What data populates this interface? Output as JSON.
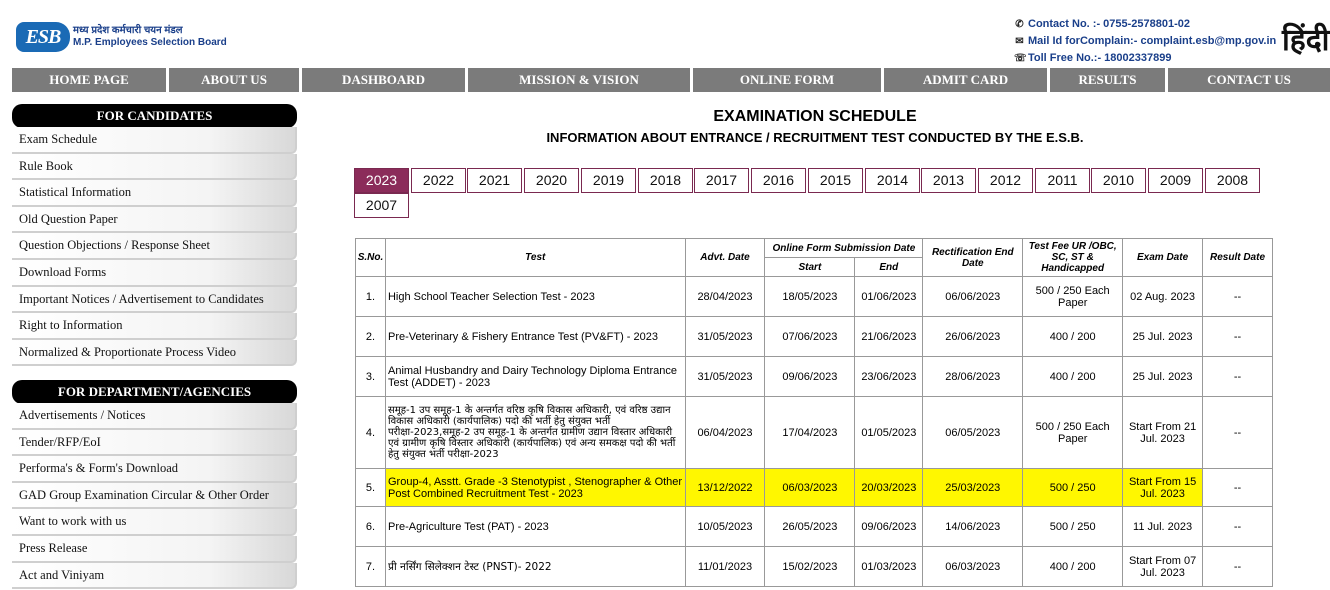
{
  "header": {
    "logo_mark": "ESB",
    "logo_line1": "मध्य प्रदेश कर्मचारी चयन मंडल",
    "logo_line2": "M.P. Employees Selection Board",
    "contact_no": "Contact No. :- 0755-2578801-02",
    "mail_label": "Mail Id forComplain:-",
    "mail_value": "complaint.esb@mp.gov.in",
    "toll_free": "Toll Free No.:- 18002337899",
    "language_toggle": "हिंदी"
  },
  "nav": [
    "HOME PAGE",
    "ABOUT US",
    "DASHBOARD",
    "MISSION & VISION",
    "ONLINE FORM",
    "ADMIT CARD",
    "RESULTS",
    "CONTACT US"
  ],
  "sidebar": {
    "candidates_heading": "FOR CANDIDATES",
    "candidates_items": [
      "Exam Schedule",
      "Rule Book",
      "Statistical Information",
      "Old Question Paper",
      "Question Objections / Response Sheet",
      "Download Forms",
      "Important Notices / Advertisement to Candidates",
      "Right to Information",
      "Normalized & Proportionate Process Video"
    ],
    "department_heading": "FOR DEPARTMENT/AGENCIES",
    "department_items": [
      "Advertisements / Notices",
      "Tender/RFP/EoI",
      "Performa's & Form's Download",
      "GAD Group Examination Circular & Other Order",
      "Want to work with us",
      "Press Release",
      "Act and Viniyam"
    ]
  },
  "main": {
    "title": "EXAMINATION SCHEDULE",
    "subtitle": "INFORMATION ABOUT ENTRANCE / RECRUITMENT TEST CONDUCTED BY THE E.S.B.",
    "years": [
      "2023",
      "2022",
      "2021",
      "2020",
      "2019",
      "2018",
      "2017",
      "2016",
      "2015",
      "2014",
      "2013",
      "2012",
      "2011",
      "2010",
      "2009",
      "2008",
      "2007"
    ],
    "active_year": "2023",
    "columns": {
      "sno": "S.No.",
      "test": "Test",
      "advt": "Advt. Date",
      "online_form": "Online Form Submission Date",
      "start": "Start",
      "end": "End",
      "rectification": "Rectification End Date",
      "fee": "Test Fee UR /OBC, SC, ST & Handicapped",
      "exam": "Exam Date",
      "result": "Result Date"
    },
    "rows": [
      {
        "sno": "1.",
        "test": "High School Teacher Selection Test - 2023",
        "advt": "28/04/2023",
        "start": "18/05/2023",
        "end": "01/06/2023",
        "rect": "06/06/2023",
        "fee": "500 / 250 Each Paper",
        "exam": "02 Aug.  2023",
        "result": "--"
      },
      {
        "sno": "2.",
        "test": "Pre-Veterinary & Fishery Entrance Test (PV&FT) - 2023",
        "advt": "31/05/2023",
        "start": "07/06/2023",
        "end": "21/06/2023",
        "rect": "26/06/2023",
        "fee": "400 / 200",
        "exam": "25 Jul. 2023",
        "result": "--"
      },
      {
        "sno": "3.",
        "test": "Animal Husbandry and Dairy Technology Diploma Entrance Test (ADDET) - 2023",
        "advt": "31/05/2023",
        "start": "09/06/2023",
        "end": "23/06/2023",
        "rect": "28/06/2023",
        "fee": "400 / 200",
        "exam": "25 Jul. 2023",
        "result": "--"
      },
      {
        "sno": "4.",
        "test": "समूह-1 उप समूह-1 के अन्तर्गत वरिष्ठ कृषि विकास अधिकारी, एवं वरिष्ठ उद्यान विकास अधिकारी (कार्यपालिक) पदो की भर्ती हेतु संयुक्त भर्ती परीक्षा-2023,समूह-2 उप समूह-1 के अन्तर्गत ग्रामीण उद्यान विस्तार अधिकारी एवं ग्रामीण कृषि विस्तार अधिकारी (कार्यपालिक) एवं अन्य समकक्ष पदो की भर्ती हेतु संयुक्त भर्ती परीक्षा-2023",
        "advt": "06/04/2023",
        "start": "17/04/2023",
        "end": "01/05/2023",
        "rect": "06/05/2023",
        "fee": "500 / 250 Each Paper",
        "exam": "Start From 21 Jul. 2023",
        "result": "--"
      },
      {
        "sno": "5.",
        "test": "Group-4, Asstt. Grade -3 Stenotypist , Stenographer & Other Post Combined Recruitment Test - 2023",
        "advt": "13/12/2022",
        "start": "06/03/2023",
        "end": "20/03/2023",
        "rect": "25/03/2023",
        "fee": "500 / 250",
        "exam": "Start From 15 Jul. 2023",
        "result": "--",
        "highlight": true
      },
      {
        "sno": "6.",
        "test": "Pre-Agriculture Test (PAT) - 2023",
        "advt": "10/05/2023",
        "start": "26/05/2023",
        "end": "09/06/2023",
        "rect": "14/06/2023",
        "fee": "500 / 250",
        "exam": "11 Jul.  2023",
        "result": "--"
      },
      {
        "sno": "7.",
        "test": "प्री नर्सिंग सिलेक्शन टेस्ट (PNST)- 2022",
        "advt": "11/01/2023",
        "start": "15/02/2023",
        "end": "01/03/2023",
        "rect": "06/03/2023",
        "fee": "400 / 200",
        "exam": "Start From 07 Jul. 2023",
        "result": "--"
      }
    ]
  }
}
